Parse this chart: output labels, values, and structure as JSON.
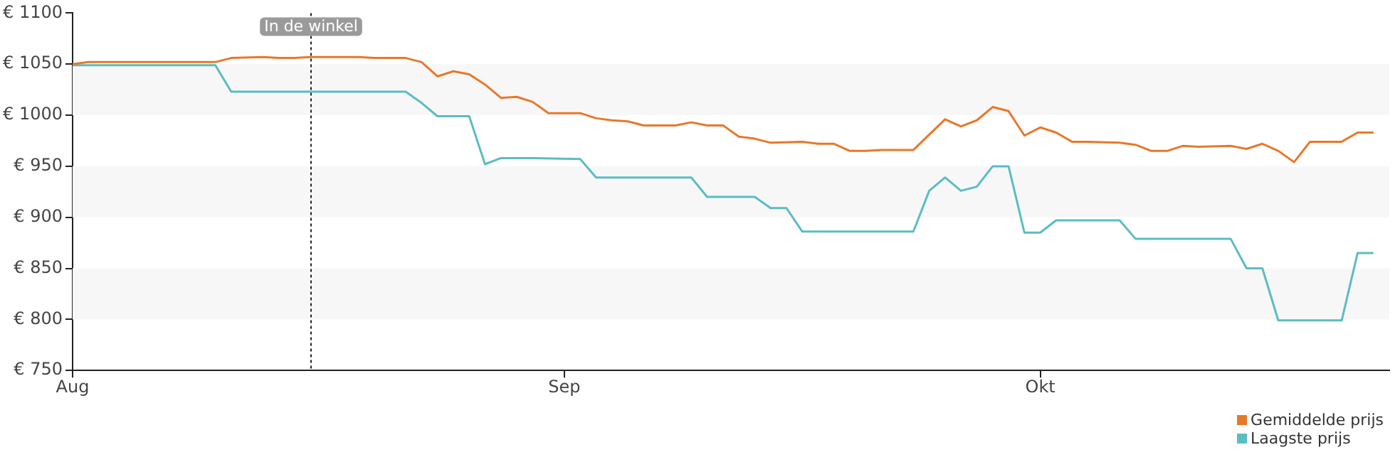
{
  "chart_data": {
    "type": "line",
    "xlim": [
      "--08-01",
      "--10-23"
    ],
    "xticks": [
      {
        "value": "--08-01",
        "label": "Aug"
      },
      {
        "value": "--09-01",
        "label": "Sep"
      },
      {
        "value": "--10-01",
        "label": "Okt"
      }
    ],
    "ylim": [
      750,
      1100
    ],
    "yticks": [
      {
        "value": 750,
        "label": "€ 750"
      },
      {
        "value": 800,
        "label": "€ 800"
      },
      {
        "value": 850,
        "label": "€ 850"
      },
      {
        "value": 900,
        "label": "€ 900"
      },
      {
        "value": 950,
        "label": "€ 950"
      },
      {
        "value": 1000,
        "label": "€ 1000"
      },
      {
        "value": 1050,
        "label": "€ 1050"
      },
      {
        "value": 1100,
        "label": "€ 1100"
      }
    ],
    "grid": false,
    "legend": "bottom right",
    "marker": "none",
    "line_style": "solid",
    "bands": [
      {
        "axis": "y",
        "from": 800,
        "to": 850,
        "color": "#f7f7f7"
      },
      {
        "axis": "y",
        "from": 900,
        "to": 950,
        "color": "#f7f7f7"
      },
      {
        "axis": "y",
        "from": 1000,
        "to": 1050,
        "color": "#f7f7f7"
      }
    ],
    "ref_lines": [
      {
        "axis": "x",
        "value": "--08-16",
        "label": "In de winkel",
        "line_style": "dotted",
        "color": "#222222"
      }
    ],
    "series": [
      {
        "name": "Gemiddelde prijs",
        "color": "#e8782a",
        "x": [
          "--08-01",
          "--08-02",
          "--08-10",
          "--08-11",
          "--08-13",
          "--08-14",
          "--08-15",
          "--08-16",
          "--08-19",
          "--08-20",
          "--08-22",
          "--08-23",
          "--08-24",
          "--08-25",
          "--08-26",
          "--08-27",
          "--08-28",
          "--08-29",
          "--08-30",
          "--08-31",
          "--09-02",
          "--09-03",
          "--09-04",
          "--09-05",
          "--09-06",
          "--09-08",
          "--09-09",
          "--09-10",
          "--09-11",
          "--09-12",
          "--09-13",
          "--09-14",
          "--09-16",
          "--09-17",
          "--09-18",
          "--09-19",
          "--09-20",
          "--09-21",
          "--09-23",
          "--09-24",
          "--09-25",
          "--09-26",
          "--09-27",
          "--09-28",
          "--09-29",
          "--09-30",
          "--10-01",
          "--10-02",
          "--10-03",
          "--10-04",
          "--10-06",
          "--10-07",
          "--10-08",
          "--10-09",
          "--10-10",
          "--10-11",
          "--10-13",
          "--10-14",
          "--10-15",
          "--10-16",
          "--10-17",
          "--10-18",
          "--10-20",
          "--10-21",
          "--10-22"
        ],
        "values": [
          1050,
          1052,
          1052,
          1056,
          1057,
          1056,
          1056,
          1057,
          1057,
          1056,
          1056,
          1052,
          1038,
          1043,
          1040,
          1030,
          1017,
          1018,
          1013,
          1002,
          1002,
          997,
          995,
          994,
          990,
          990,
          993,
          990,
          990,
          979,
          977,
          973,
          974,
          972,
          972,
          965,
          965,
          966,
          966,
          981,
          996,
          989,
          995,
          1008,
          1004,
          980,
          988,
          983,
          974,
          974,
          973,
          971,
          965,
          965,
          970,
          969,
          970,
          967,
          972,
          965,
          954,
          974,
          974,
          983,
          983
        ]
      },
      {
        "name": "Laagste prijs",
        "color": "#5bbcc4",
        "x": [
          "--08-01",
          "--08-10",
          "--08-11",
          "--08-22",
          "--08-23",
          "--08-24",
          "--08-26",
          "--08-27",
          "--08-28",
          "--08-30",
          "--09-02",
          "--09-03",
          "--09-09",
          "--09-10",
          "--09-13",
          "--09-14",
          "--09-15",
          "--09-16",
          "--09-23",
          "--09-24",
          "--09-25",
          "--09-26",
          "--09-27",
          "--09-28",
          "--09-29",
          "--09-30",
          "--10-01",
          "--10-02",
          "--10-06",
          "--10-07",
          "--10-13",
          "--10-14",
          "--10-15",
          "--10-16",
          "--10-20",
          "--10-21",
          "--10-22"
        ],
        "values": [
          1049,
          1049,
          1023,
          1023,
          1012,
          999,
          999,
          952,
          958,
          958,
          957,
          939,
          939,
          920,
          920,
          909,
          909,
          886,
          886,
          926,
          939,
          926,
          930,
          950,
          950,
          885,
          885,
          897,
          897,
          879,
          879,
          850,
          850,
          799,
          799,
          865,
          865
        ]
      }
    ]
  }
}
